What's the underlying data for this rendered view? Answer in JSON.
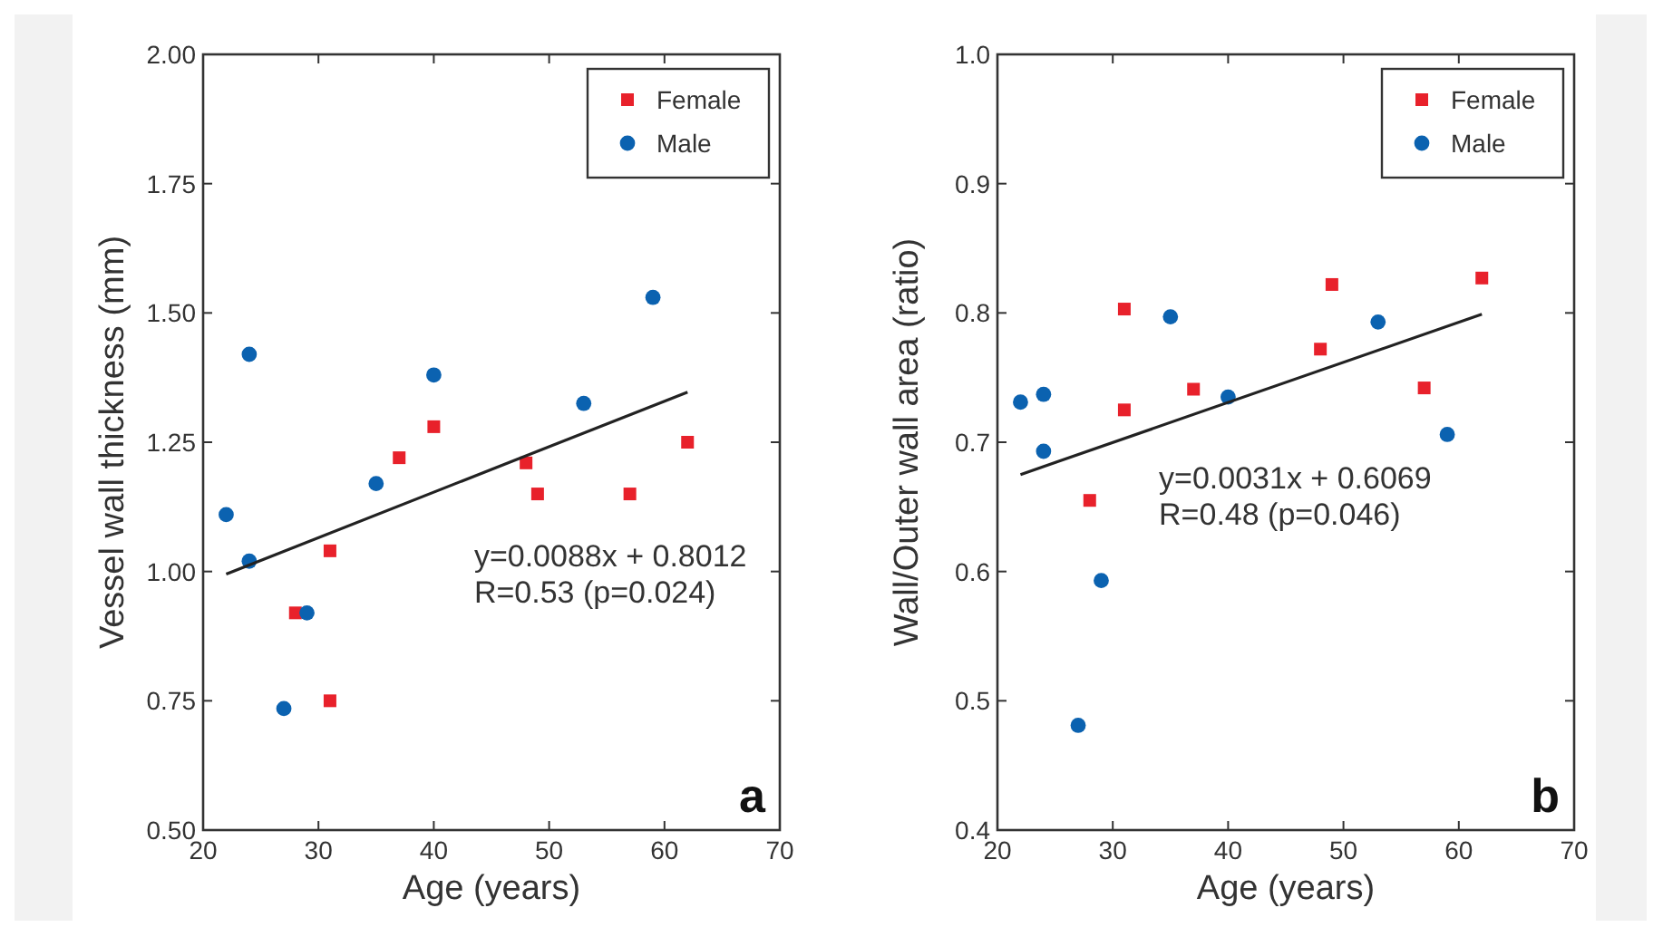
{
  "chart_data": [
    {
      "type": "scatter",
      "xlabel": "Age (years)",
      "ylabel": "Vessel wall thickness (mm)",
      "xlim": [
        20,
        70
      ],
      "ylim": [
        0.5,
        2.0
      ],
      "xticks": [
        20,
        30,
        40,
        50,
        60,
        70
      ],
      "yticks": [
        {
          "value": 0.5,
          "label": "0.50"
        },
        {
          "value": 0.75,
          "label": "0.75"
        },
        {
          "value": 1.0,
          "label": "1.00"
        },
        {
          "value": 1.25,
          "label": "1.25"
        },
        {
          "value": 1.5,
          "label": "1.50"
        },
        {
          "value": 1.75,
          "label": "1.75"
        },
        {
          "value": 2.0,
          "label": "2.00"
        }
      ],
      "legend": "top right",
      "grid": false,
      "series": [
        {
          "name": "Female",
          "marker": "square",
          "color": "#e8212b",
          "x": [
            28,
            31,
            31,
            37,
            40,
            48,
            49,
            57,
            62
          ],
          "values": [
            0.92,
            1.04,
            0.75,
            1.22,
            1.28,
            1.21,
            1.15,
            1.15,
            1.25
          ]
        },
        {
          "name": "Male",
          "marker": "circle",
          "color": "#0b62b0",
          "x": [
            22,
            24,
            24,
            27,
            29,
            35,
            40,
            53,
            59
          ],
          "values": [
            1.11,
            1.42,
            1.02,
            0.735,
            0.92,
            1.17,
            1.38,
            1.325,
            1.53
          ]
        },
        {
          "type": "line",
          "marker": "none",
          "color": "#222222",
          "x": [
            22,
            62
          ],
          "values": [
            0.995,
            1.347
          ]
        }
      ],
      "annotations": [
        "y=0.0088x + 0.8012\nR=0.53 (p=0.024)",
        "a"
      ]
    },
    {
      "type": "scatter",
      "xlabel": "Age (years)",
      "ylabel": "Wall/Outer wall area (ratio)",
      "xlim": [
        20,
        70
      ],
      "ylim": [
        0.4,
        1.0
      ],
      "xticks": [
        20,
        30,
        40,
        50,
        60,
        70
      ],
      "yticks": [
        0.4,
        0.5,
        0.6,
        0.7,
        0.8,
        0.9,
        {
          "value": 1.0,
          "label": "1.0"
        }
      ],
      "legend": "top right",
      "grid": false,
      "series": [
        {
          "name": "Female",
          "marker": "square",
          "color": "#e8212b",
          "x": [
            28,
            31,
            31,
            37,
            48,
            49,
            57,
            62
          ],
          "values": [
            0.655,
            0.803,
            0.725,
            0.741,
            0.772,
            0.822,
            0.742,
            0.827
          ]
        },
        {
          "name": "Male",
          "marker": "circle",
          "color": "#0b62b0",
          "x": [
            22,
            24,
            24,
            27,
            29,
            35,
            40,
            53,
            59
          ],
          "values": [
            0.731,
            0.737,
            0.693,
            0.481,
            0.593,
            0.797,
            0.735,
            0.793,
            0.706
          ]
        },
        {
          "type": "line",
          "marker": "none",
          "color": "#222222",
          "x": [
            22,
            62
          ],
          "values": [
            0.675,
            0.799
          ]
        }
      ],
      "annotations": [
        "y=0.0031x + 0.6069\nR=0.48 (p=0.046)",
        "b"
      ]
    }
  ]
}
